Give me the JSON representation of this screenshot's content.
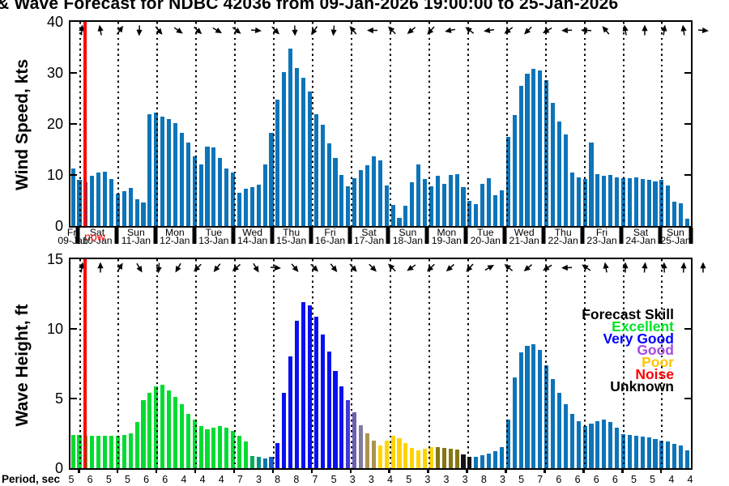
{
  "title": "& Wave Forecast for NDBC 42036 from 09-Jan-2026 19:00:00 to 25-Jan-2026",
  "now_label": "now",
  "accent_colors": {
    "now_line": "#FF0000",
    "wind_bar": "#0C74B8",
    "grid": "#000000"
  },
  "wind_axis": {
    "ylabel": "Wind Speed, kts",
    "yticks": [
      "0",
      "10",
      "20",
      "30",
      "40"
    ],
    "ylim": [
      0,
      40
    ]
  },
  "wave_axis": {
    "ylabel": "Wave Height, ft",
    "yticks": [
      "0",
      "5",
      "10",
      "15"
    ],
    "ylim": [
      0,
      15
    ]
  },
  "dates": [
    {
      "weekday": "Fri",
      "date": "09-Jan"
    },
    {
      "weekday": "Sat",
      "date": "10-Jan"
    },
    {
      "weekday": "Sun",
      "date": "11-Jan"
    },
    {
      "weekday": "Mon",
      "date": "12-Jan"
    },
    {
      "weekday": "Tue",
      "date": "13-Jan"
    },
    {
      "weekday": "Wed",
      "date": "14-Jan"
    },
    {
      "weekday": "Thu",
      "date": "15-Jan"
    },
    {
      "weekday": "Fri",
      "date": "16-Jan"
    },
    {
      "weekday": "Sat",
      "date": "17-Jan"
    },
    {
      "weekday": "Sun",
      "date": "18-Jan"
    },
    {
      "weekday": "Mon",
      "date": "19-Jan"
    },
    {
      "weekday": "Tue",
      "date": "20-Jan"
    },
    {
      "weekday": "Wed",
      "date": "21-Jan"
    },
    {
      "weekday": "Thu",
      "date": "22-Jan"
    },
    {
      "weekday": "Fri",
      "date": "23-Jan"
    },
    {
      "weekday": "Sat",
      "date": "24-Jan"
    },
    {
      "weekday": "Sun",
      "date": "25-Jan"
    }
  ],
  "legend": {
    "title": "Forecast Skill",
    "items": [
      {
        "label": "Excellent",
        "color": "#00E428"
      },
      {
        "label": "Very Good",
        "color": "#0000FF"
      },
      {
        "label": "Good",
        "color": "#A44BDE"
      },
      {
        "label": "Poor",
        "color": "#FFC400"
      },
      {
        "label": "Noise",
        "color": "#FF0000"
      },
      {
        "label": "Unknown",
        "color": "#000000"
      }
    ]
  },
  "skill_palette": {
    "E": "#00DC32",
    "T1": "#00AD56",
    "T2": "#009381",
    "T3": "#0078A8",
    "T4": "#1C5CCC",
    "V": "#0A10F0",
    "BV": "#4038D8",
    "S1": "#6A5FB4",
    "S2": "#837AA0",
    "TN": "#AC9350",
    "P": "#FFD400",
    "OL": "#857712",
    "U": "#141414",
    "N": "#0C74B8"
  },
  "period": {
    "label": "Period, sec",
    "values": [
      5,
      6,
      5,
      5,
      6,
      6,
      4,
      4,
      4,
      7,
      3,
      8,
      8,
      7,
      5,
      3,
      3,
      4,
      5,
      3,
      3,
      3,
      8,
      3,
      5,
      7,
      6,
      6,
      6,
      6,
      5,
      5,
      4,
      4
    ]
  },
  "chart_data": [
    {
      "type": "bar",
      "title": "Wind Speed forecast",
      "ylabel": "Wind Speed, kts",
      "ylim": [
        0,
        40
      ],
      "yticks": [
        0,
        10,
        20,
        30,
        40
      ],
      "x_start": "09-Jan-2026 20:00",
      "x_interval_hours": 4,
      "bar_color": "#0C74B8",
      "values": [
        11.3,
        9.0,
        8.6,
        9.8,
        10.4,
        10.6,
        9.2,
        6.3,
        6.9,
        7.4,
        5.3,
        4.6,
        21.9,
        22.3,
        21.5,
        21.0,
        20.2,
        18.3,
        16.4,
        13.7,
        12.1,
        15.6,
        15.4,
        13.4,
        11.3,
        10.5,
        6.5,
        7.3,
        7.6,
        8.1,
        12.1,
        18.2,
        24.8,
        30.2,
        34.8,
        31.0,
        29.0,
        26.4,
        21.9,
        19.9,
        16.2,
        13.3,
        10.0,
        7.8,
        9.3,
        10.9,
        11.9,
        13.7,
        12.8,
        8.0,
        4.2,
        1.6,
        3.9,
        8.6,
        12.1,
        9.2,
        7.8,
        9.8,
        8.3,
        10.0,
        10.2,
        7.6,
        4.9,
        4.3,
        8.3,
        9.3,
        6.0,
        7.0,
        17.4,
        21.8,
        27.4,
        29.8,
        30.8,
        30.5,
        28.6,
        24.2,
        20.5,
        17.9,
        10.4,
        9.6,
        9.2,
        16.4,
        10.1,
        9.8,
        10.0,
        9.6,
        9.3,
        9.4,
        9.5,
        9.2,
        9.0,
        8.7,
        9.1,
        8.0,
        4.7,
        4.4,
        1.4
      ],
      "direction_arrows_deg": [
        5,
        350,
        35,
        182,
        140,
        125,
        132,
        120,
        128,
        95,
        135,
        178,
        215,
        185,
        320,
        270,
        315,
        230,
        222,
        258,
        308,
        262,
        232,
        225,
        240,
        268,
        272,
        320,
        350,
        0,
        8,
        352,
        95
      ]
    },
    {
      "type": "bar",
      "title": "Wave Height forecast with skill colors",
      "ylabel": "Wave Height, ft",
      "ylim": [
        0,
        15
      ],
      "yticks": [
        0,
        5,
        10,
        15
      ],
      "x_start": "09-Jan-2026 20:00",
      "x_interval_hours": 4,
      "values": [
        2.4,
        2.4,
        2.3,
        2.3,
        2.3,
        2.3,
        2.3,
        2.3,
        2.4,
        2.5,
        3.3,
        4.9,
        5.4,
        5.9,
        6.0,
        5.6,
        5.1,
        4.6,
        3.9,
        3.5,
        3.0,
        2.8,
        2.9,
        3.0,
        2.9,
        2.7,
        2.3,
        1.9,
        0.9,
        0.8,
        0.7,
        0.8,
        1.8,
        5.4,
        8.0,
        10.6,
        11.9,
        11.7,
        10.9,
        9.6,
        8.4,
        7.0,
        5.9,
        4.9,
        4.0,
        3.1,
        2.5,
        2.0,
        1.6,
        2.0,
        2.3,
        2.15,
        1.8,
        1.45,
        1.3,
        1.4,
        1.5,
        1.5,
        1.45,
        1.4,
        1.35,
        1.0,
        0.8,
        0.8,
        0.95,
        1.05,
        1.25,
        1.5,
        3.5,
        6.5,
        8.3,
        8.8,
        8.9,
        8.5,
        7.4,
        6.4,
        5.4,
        4.6,
        3.9,
        3.4,
        3.0,
        3.2,
        3.4,
        3.5,
        3.3,
        2.9,
        2.45,
        2.4,
        2.35,
        2.25,
        2.2,
        2.1,
        2.0,
        1.9,
        1.75,
        1.6,
        1.3
      ],
      "skill_keys": [
        "E",
        "E",
        "E",
        "E",
        "E",
        "E",
        "E",
        "E",
        "E",
        "E",
        "E",
        "E",
        "E",
        "E",
        "E",
        "E",
        "E",
        "E",
        "E",
        "E",
        "E",
        "E",
        "E",
        "E",
        "E",
        "E",
        "E",
        "E",
        "T1",
        "T2",
        "T3",
        "T4",
        "V",
        "V",
        "V",
        "V",
        "V",
        "V",
        "V",
        "V",
        "V",
        "V",
        "V",
        "BV",
        "S1",
        "S2",
        "TN",
        "TN",
        "P",
        "P",
        "P",
        "P",
        "P",
        "P",
        "P",
        "P",
        "P",
        "OL",
        "OL",
        "OL",
        "OL",
        "U",
        "U",
        "N",
        "N",
        "N",
        "N",
        "N",
        "N",
        "N",
        "N",
        "N",
        "N",
        "N",
        "N",
        "N",
        "N",
        "N",
        "N",
        "N",
        "N",
        "N",
        "N",
        "N",
        "N",
        "N",
        "N",
        "N",
        "N",
        "N",
        "N",
        "N",
        "N",
        "N",
        "N",
        "N",
        "N"
      ],
      "direction_arrows_deg": [
        8,
        0,
        30,
        150,
        185,
        210,
        225,
        218,
        228,
        150,
        95,
        140,
        135,
        142,
        138,
        135,
        315,
        235,
        225,
        228,
        222,
        60,
        310,
        230,
        238,
        268,
        305,
        350,
        0,
        5,
        358,
        3,
        0
      ]
    },
    {
      "type": "table",
      "title": "Period, sec",
      "x_interval_hours": 12,
      "values": [
        5,
        6,
        5,
        5,
        6,
        6,
        4,
        4,
        4,
        7,
        3,
        8,
        8,
        7,
        5,
        3,
        3,
        4,
        5,
        3,
        3,
        3,
        8,
        3,
        5,
        7,
        6,
        6,
        6,
        6,
        5,
        5,
        4,
        4
      ]
    }
  ]
}
